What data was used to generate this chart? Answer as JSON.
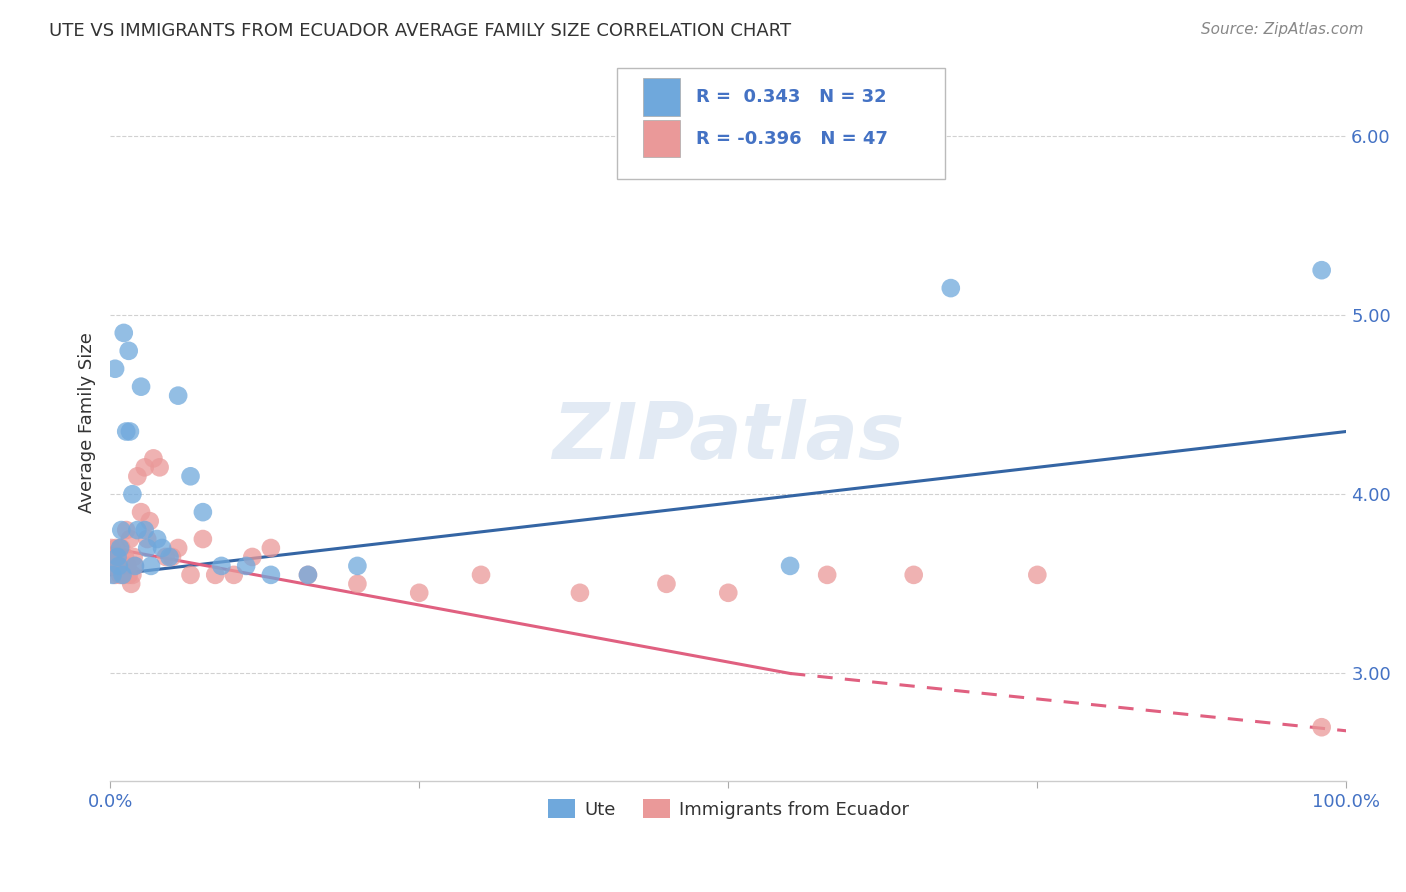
{
  "title": "UTE VS IMMIGRANTS FROM ECUADOR AVERAGE FAMILY SIZE CORRELATION CHART",
  "source": "Source: ZipAtlas.com",
  "ylabel": "Average Family Size",
  "yticks": [
    3.0,
    4.0,
    5.0,
    6.0
  ],
  "xlim": [
    0.0,
    1.0
  ],
  "ylim": [
    2.4,
    6.4
  ],
  "watermark": "ZIPatlas",
  "legend_ute_R": "0.343",
  "legend_ute_N": "32",
  "legend_ecuador_R": "-0.396",
  "legend_ecuador_N": "47",
  "ute_color": "#6fa8dc",
  "ecuador_color": "#ea9999",
  "trend_ute_color": "#3465a4",
  "trend_ecuador_color": "#e06080",
  "ute_x": [
    0.002,
    0.004,
    0.006,
    0.007,
    0.008,
    0.009,
    0.01,
    0.011,
    0.013,
    0.015,
    0.016,
    0.018,
    0.02,
    0.022,
    0.025,
    0.028,
    0.03,
    0.033,
    0.038,
    0.042,
    0.048,
    0.055,
    0.065,
    0.075,
    0.09,
    0.11,
    0.13,
    0.16,
    0.2,
    0.55,
    0.68,
    0.98
  ],
  "ute_y": [
    3.55,
    4.7,
    3.65,
    3.6,
    3.7,
    3.8,
    3.55,
    4.9,
    4.35,
    4.8,
    4.35,
    4.0,
    3.6,
    3.8,
    4.6,
    3.8,
    3.7,
    3.6,
    3.75,
    3.7,
    3.65,
    4.55,
    4.1,
    3.9,
    3.6,
    3.6,
    3.55,
    3.55,
    3.6,
    3.6,
    5.15,
    5.25
  ],
  "ecuador_x": [
    0.001,
    0.002,
    0.003,
    0.004,
    0.005,
    0.006,
    0.007,
    0.008,
    0.009,
    0.01,
    0.011,
    0.012,
    0.013,
    0.014,
    0.015,
    0.016,
    0.017,
    0.018,
    0.019,
    0.02,
    0.022,
    0.025,
    0.028,
    0.03,
    0.032,
    0.035,
    0.04,
    0.045,
    0.05,
    0.055,
    0.065,
    0.075,
    0.085,
    0.1,
    0.115,
    0.13,
    0.16,
    0.2,
    0.25,
    0.3,
    0.38,
    0.45,
    0.5,
    0.58,
    0.65,
    0.75,
    0.98
  ],
  "ecuador_y": [
    3.7,
    3.6,
    3.65,
    3.55,
    3.7,
    3.65,
    3.6,
    3.55,
    3.7,
    3.6,
    3.55,
    3.65,
    3.8,
    3.6,
    3.55,
    3.75,
    3.5,
    3.55,
    3.65,
    3.6,
    4.1,
    3.9,
    4.15,
    3.75,
    3.85,
    4.2,
    4.15,
    3.65,
    3.65,
    3.7,
    3.55,
    3.75,
    3.55,
    3.55,
    3.65,
    3.7,
    3.55,
    3.5,
    3.45,
    3.55,
    3.45,
    3.5,
    3.45,
    3.55,
    3.55,
    3.55,
    2.7
  ],
  "background_color": "#ffffff",
  "grid_color": "#cccccc",
  "trend_ute_x0": 0.0,
  "trend_ute_x1": 1.0,
  "trend_ute_y0": 3.55,
  "trend_ute_y1": 4.35,
  "trend_ecuador_solid_x0": 0.0,
  "trend_ecuador_solid_x1": 0.55,
  "trend_ecuador_y0": 3.7,
  "trend_ecuador_y1": 3.0,
  "trend_ecuador_dash_x0": 0.55,
  "trend_ecuador_dash_x1": 1.0,
  "trend_ecuador_dash_y0": 3.0,
  "trend_ecuador_dash_y1": 2.68
}
